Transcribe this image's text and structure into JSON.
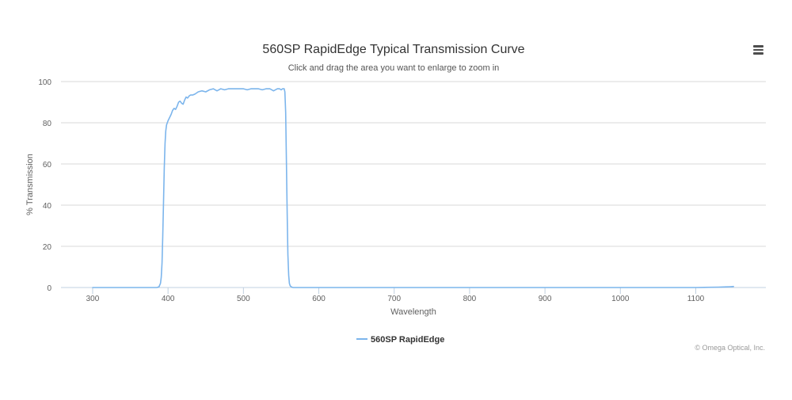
{
  "chart_data": {
    "type": "line",
    "title": "560SP RapidEdge Typical Transmission Curve",
    "subtitle": "Click and drag the area you want to enlarge to zoom in",
    "xlabel": "Wavelength",
    "ylabel": "% Transmission",
    "xlim": [
      258,
      1193
    ],
    "ylim": [
      0,
      100
    ],
    "x_ticks": [
      300,
      400,
      500,
      600,
      700,
      800,
      900,
      1000,
      1100
    ],
    "y_ticks": [
      0,
      20,
      40,
      60,
      80,
      100
    ],
    "grid": true,
    "legend_position": "bottom-center",
    "series": [
      {
        "name": "560SP RapidEdge",
        "color": "#7cb5ec",
        "x": [
          300,
          350,
          385,
          388,
          390,
          391,
          392,
          393,
          394,
          395,
          396,
          397,
          398,
          400,
          402,
          404,
          406,
          408,
          410,
          412,
          414,
          416,
          418,
          420,
          422,
          424,
          426,
          428,
          430,
          433,
          436,
          440,
          445,
          450,
          455,
          460,
          465,
          470,
          475,
          480,
          485,
          490,
          495,
          500,
          505,
          510,
          515,
          520,
          525,
          530,
          535,
          540,
          545,
          548,
          550,
          552,
          554,
          555,
          556,
          557,
          558,
          559,
          560,
          561,
          562,
          564,
          566,
          570,
          600,
          700,
          800,
          900,
          1000,
          1050,
          1100,
          1130,
          1140,
          1145,
          1150
        ],
        "y": [
          0,
          0,
          0,
          0.3,
          2,
          5,
          12,
          25,
          42,
          58,
          70,
          76,
          79,
          81,
          82.5,
          84,
          86,
          87,
          86.5,
          88,
          90,
          90.5,
          89.5,
          89,
          91,
          92.5,
          92,
          93,
          93.5,
          93.5,
          94,
          95,
          95.5,
          95,
          96,
          96.5,
          95.5,
          96.5,
          96,
          96.5,
          96.5,
          96.5,
          96.5,
          96.5,
          96,
          96.5,
          96.5,
          96.5,
          96,
          96.5,
          96.5,
          95.5,
          96.5,
          96.5,
          96,
          96.5,
          96.5,
          95,
          85,
          62,
          36,
          16,
          6,
          2,
          0.8,
          0.2,
          0,
          0,
          0,
          0,
          0,
          0,
          0,
          0,
          0,
          0.2,
          0.3,
          0.4,
          0.5
        ]
      }
    ],
    "credits": "© Omega Optical, Inc."
  }
}
